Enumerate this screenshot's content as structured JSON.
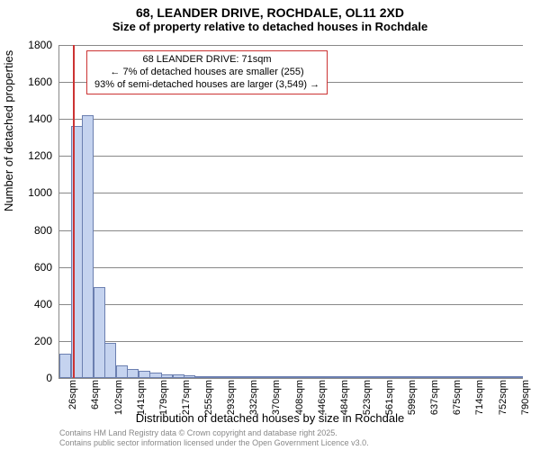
{
  "header": {
    "title1": "68, LEANDER DRIVE, ROCHDALE, OL11 2XD",
    "title2": "Size of property relative to detached houses in Rochdale"
  },
  "chart": {
    "type": "bar",
    "y": {
      "min": 0,
      "max": 1800,
      "tick_step": 200,
      "label": "Number of detached properties"
    },
    "x": {
      "label": "Distribution of detached houses by size in Rochdale",
      "tick_labels": [
        "26sqm",
        "64sqm",
        "102sqm",
        "141sqm",
        "179sqm",
        "217sqm",
        "255sqm",
        "293sqm",
        "332sqm",
        "370sqm",
        "408sqm",
        "446sqm",
        "484sqm",
        "523sqm",
        "561sqm",
        "599sqm",
        "637sqm",
        "675sqm",
        "714sqm",
        "752sqm",
        "790sqm"
      ],
      "tick_step": 2
    },
    "bars": {
      "values": [
        130,
        1360,
        1420,
        490,
        190,
        70,
        50,
        40,
        30,
        20,
        18,
        15,
        12,
        10,
        10,
        8,
        8,
        8,
        6,
        6,
        6,
        5,
        5,
        5,
        5,
        4,
        4,
        4,
        4,
        4,
        3,
        3,
        3,
        3,
        3,
        3,
        3,
        2,
        2,
        2,
        2
      ],
      "fill_color": "#c5d3ef",
      "border_color": "#6b7fb0",
      "background_color": "#ffffff",
      "grid_color": "#888888"
    },
    "marker": {
      "position_index": 1.2,
      "color": "#cc3333"
    },
    "annotation": {
      "line1": "68 LEANDER DRIVE: 71sqm",
      "line2": "← 7% of detached houses are smaller (255)",
      "line3": "93% of semi-detached houses are larger (3,549) →",
      "border_color": "#cc3333"
    }
  },
  "footer": {
    "line1": "Contains HM Land Registry data © Crown copyright and database right 2025.",
    "line2": "Contains public sector information licensed under the Open Government Licence v3.0."
  }
}
